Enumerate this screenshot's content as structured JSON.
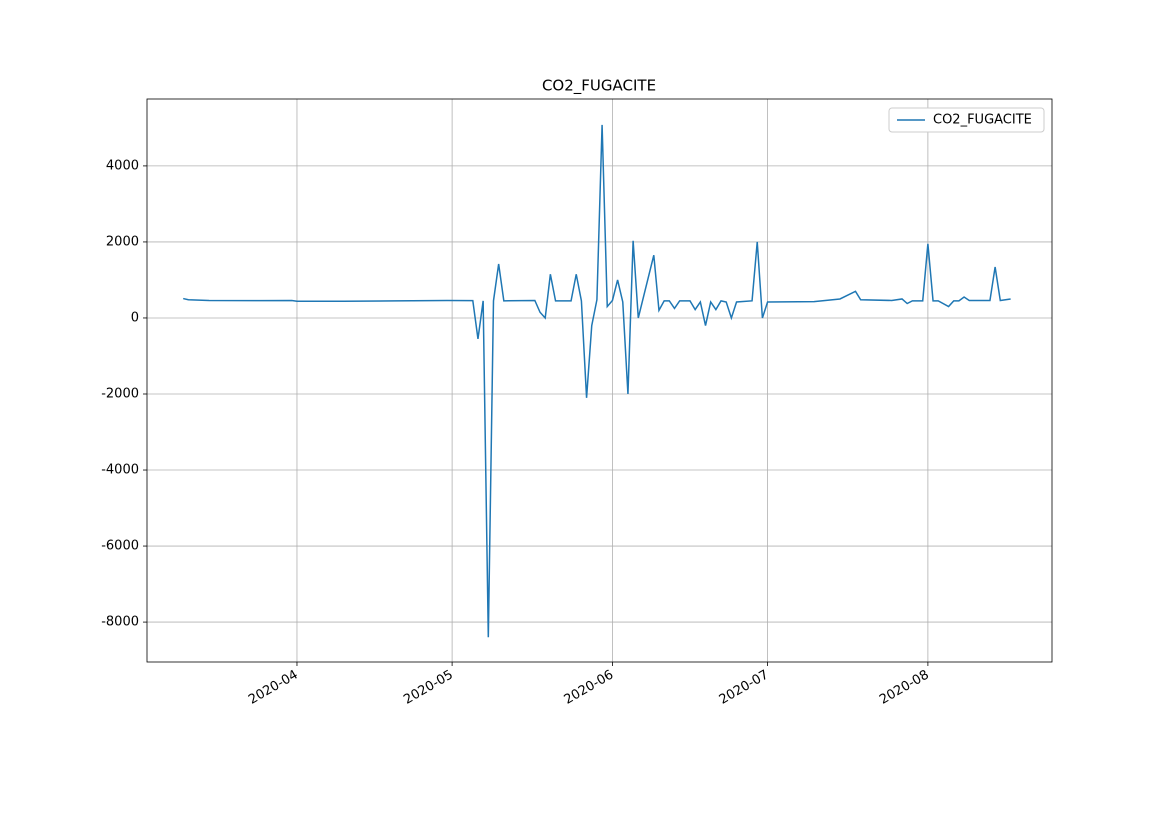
{
  "chart_data": {
    "type": "line",
    "title": "CO2_FUGACITE",
    "x": [
      "2020-03-10",
      "2020-03-11",
      "2020-03-15",
      "2020-03-25",
      "2020-03-31",
      "2020-04-01",
      "2020-04-10",
      "2020-04-20",
      "2020-04-30",
      "2020-05-05",
      "2020-05-06",
      "2020-05-07",
      "2020-05-08",
      "2020-05-09",
      "2020-05-10",
      "2020-05-11",
      "2020-05-17",
      "2020-05-18",
      "2020-05-19",
      "2020-05-20",
      "2020-05-21",
      "2020-05-24",
      "2020-05-25",
      "2020-05-26",
      "2020-05-27",
      "2020-05-28",
      "2020-05-29",
      "2020-05-30",
      "2020-05-31",
      "2020-06-01",
      "2020-06-02",
      "2020-06-03",
      "2020-06-04",
      "2020-06-05",
      "2020-06-06",
      "2020-06-09",
      "2020-06-10",
      "2020-06-11",
      "2020-06-12",
      "2020-06-13",
      "2020-06-14",
      "2020-06-16",
      "2020-06-17",
      "2020-06-18",
      "2020-06-19",
      "2020-06-20",
      "2020-06-21",
      "2020-06-22",
      "2020-06-23",
      "2020-06-24",
      "2020-06-25",
      "2020-06-28",
      "2020-06-29",
      "2020-06-30",
      "2020-07-01",
      "2020-07-10",
      "2020-07-15",
      "2020-07-18",
      "2020-07-19",
      "2020-07-25",
      "2020-07-27",
      "2020-07-28",
      "2020-07-29",
      "2020-07-31",
      "2020-08-01",
      "2020-08-02",
      "2020-08-03",
      "2020-08-05",
      "2020-08-06",
      "2020-08-07",
      "2020-08-08",
      "2020-08-09",
      "2020-08-13",
      "2020-08-14",
      "2020-08-15",
      "2020-08-17"
    ],
    "series": [
      {
        "name": "CO2_FUGACITE",
        "color": "#1f77b4",
        "values": [
          510,
          480,
          460,
          455,
          460,
          440,
          440,
          450,
          460,
          455,
          -550,
          450,
          -8400,
          450,
          1420,
          450,
          460,
          150,
          0,
          1150,
          450,
          450,
          1150,
          450,
          -2100,
          -200,
          480,
          5080,
          300,
          460,
          1000,
          420,
          -2000,
          2030,
          0,
          1650,
          200,
          450,
          450,
          250,
          450,
          450,
          220,
          420,
          -200,
          420,
          220,
          450,
          420,
          0,
          420,
          450,
          2000,
          0,
          420,
          430,
          500,
          700,
          480,
          460,
          500,
          380,
          450,
          450,
          1950,
          450,
          450,
          300,
          450,
          450,
          550,
          460,
          460,
          1340,
          460,
          500
        ]
      }
    ],
    "xlim": [
      "2020-03-03",
      "2020-08-25"
    ],
    "xticks": [
      {
        "value": "2020-04-01",
        "label": "2020-04"
      },
      {
        "value": "2020-05-01",
        "label": "2020-05"
      },
      {
        "value": "2020-06-01",
        "label": "2020-06"
      },
      {
        "value": "2020-07-01",
        "label": "2020-07"
      },
      {
        "value": "2020-08-01",
        "label": "2020-08"
      }
    ],
    "ylim": [
      -9050,
      5760
    ],
    "yticks": [
      -8000,
      -6000,
      -4000,
      -2000,
      0,
      2000,
      4000
    ],
    "grid": true,
    "legend": "upper right"
  }
}
